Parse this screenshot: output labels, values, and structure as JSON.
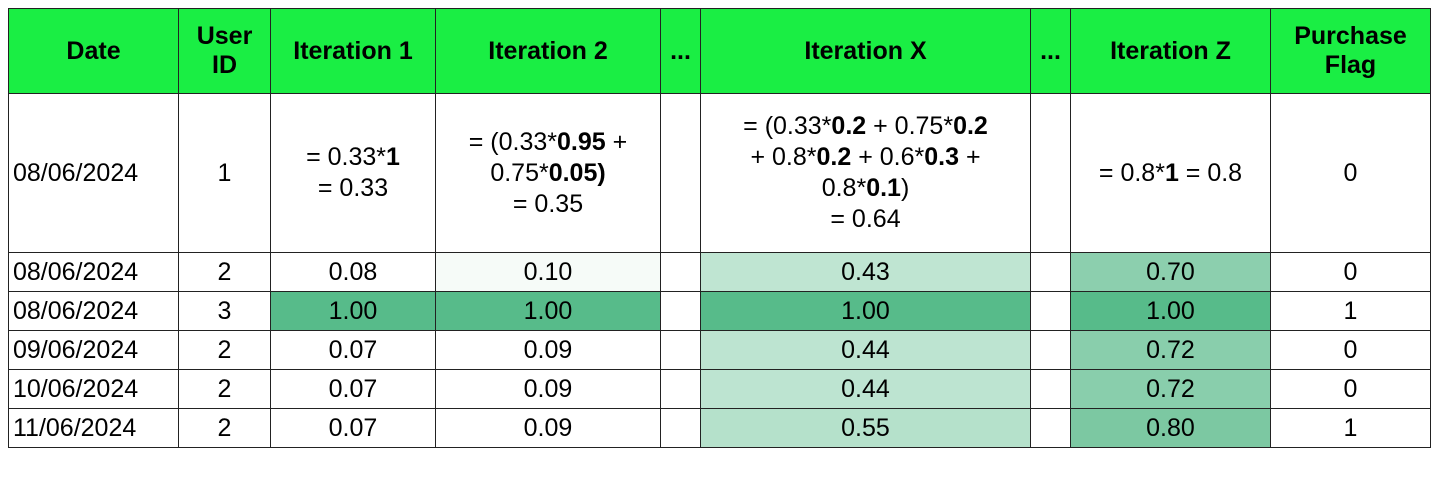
{
  "table": {
    "header_fill": "#1aee44",
    "header": [
      "Date",
      "User ID",
      "Iteration 1",
      "Iteration 2",
      "...",
      "Iteration X",
      "...",
      "Iteration Z",
      "Purchase Flag"
    ],
    "rows": [
      {
        "cells": [
          "08/06/2024",
          "1",
          [
            [
              {
                "text": "= 0.33*"
              },
              {
                "text": "1",
                "bold": true
              }
            ],
            [
              {
                "text": "= 0.33"
              }
            ]
          ],
          [
            [
              {
                "text": "= (0.33*"
              },
              {
                "text": "0.95",
                "bold": true
              },
              {
                "text": " +"
              }
            ],
            [
              {
                "text": "0.75*"
              },
              {
                "text": "0.05)",
                "bold": true
              }
            ],
            [
              {
                "text": "= 0.35"
              }
            ]
          ],
          "",
          [
            [
              {
                "text": "= (0.33*"
              },
              {
                "text": "0.2",
                "bold": true
              },
              {
                "text": " + 0.75*"
              },
              {
                "text": "0.2",
                "bold": true
              }
            ],
            [
              {
                "text": "+ 0.8*"
              },
              {
                "text": "0.2",
                "bold": true
              },
              {
                "text": " + 0.6*"
              },
              {
                "text": "0.3",
                "bold": true
              },
              {
                "text": " +"
              }
            ],
            [
              {
                "text": "0.8*"
              },
              {
                "text": "0.1",
                "bold": true
              },
              {
                "text": ")"
              }
            ],
            [
              {
                "text": "= 0.64"
              }
            ]
          ],
          "",
          [
            [
              {
                "text": "= 0.8*"
              },
              {
                "text": "1",
                "bold": true
              },
              {
                "text": " = 0.8"
              }
            ]
          ],
          "0"
        ],
        "fills": [
          null,
          null,
          null,
          null,
          null,
          null,
          null,
          null,
          null
        ]
      },
      {
        "cells": [
          "08/06/2024",
          "2",
          "0.08",
          "0.10",
          "",
          "0.43",
          "",
          "0.70",
          "0"
        ],
        "fills": [
          null,
          null,
          null,
          "#f6fbf8",
          null,
          "#bfe5d2",
          null,
          "#8ccfae",
          null
        ]
      },
      {
        "cells": [
          "08/06/2024",
          "3",
          "1.00",
          "1.00",
          "",
          "1.00",
          "",
          "1.00",
          "1"
        ],
        "fills": [
          null,
          null,
          "#57bb8a",
          "#57bb8a",
          null,
          "#57bb8a",
          null,
          "#57bb8a",
          null
        ]
      },
      {
        "cells": [
          "09/06/2024",
          "2",
          "0.07",
          "0.09",
          "",
          "0.44",
          "",
          "0.72",
          "0"
        ],
        "fills": [
          null,
          null,
          null,
          null,
          null,
          "#bde4d1",
          null,
          "#89ceac",
          null
        ]
      },
      {
        "cells": [
          "10/06/2024",
          "2",
          "0.07",
          "0.09",
          "",
          "0.44",
          "",
          "0.72",
          "0"
        ],
        "fills": [
          null,
          null,
          null,
          null,
          null,
          "#bde4d1",
          null,
          "#89ceac",
          null
        ]
      },
      {
        "cells": [
          "11/06/2024",
          "2",
          "0.07",
          "0.09",
          "",
          "0.55",
          "",
          "0.80",
          "1"
        ],
        "fills": [
          null,
          null,
          null,
          null,
          null,
          "#b5e1cb",
          null,
          "#7cc8a2",
          null
        ]
      }
    ]
  }
}
